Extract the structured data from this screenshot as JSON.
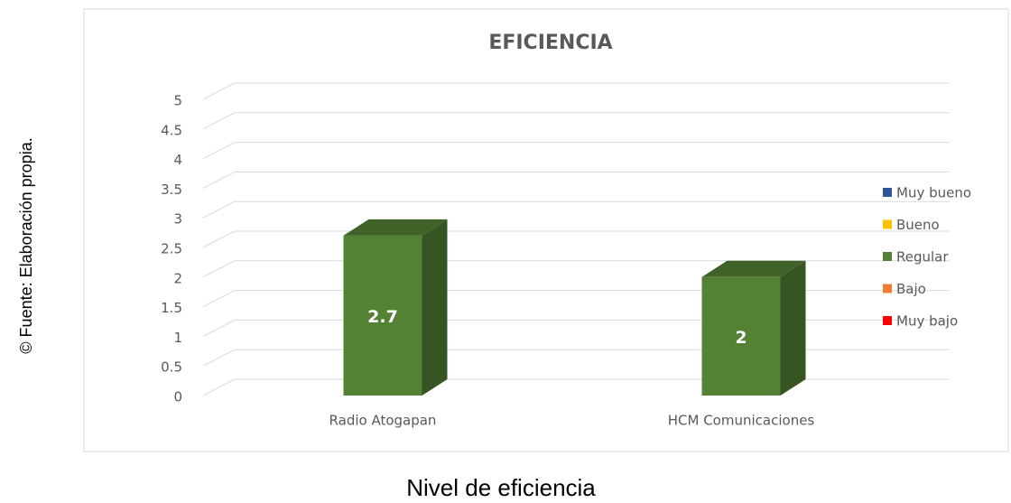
{
  "chart_data": {
    "type": "bar3d",
    "title": "EFICIENCIA",
    "categories": [
      "Radio Atogapan",
      "HCM Comunicaciones"
    ],
    "series": [
      {
        "name": "Muy bueno",
        "color": "#2f5597",
        "values": [
          null,
          null
        ]
      },
      {
        "name": "Bueno",
        "color": "#ffc000",
        "values": [
          null,
          null
        ]
      },
      {
        "name": "Regular",
        "color": "#548235",
        "values": [
          2.7,
          2
        ]
      },
      {
        "name": "Bajo",
        "color": "#ed7d31",
        "values": [
          null,
          null
        ]
      },
      {
        "name": "Muy bajo",
        "color": "#ff0000",
        "values": [
          null,
          null
        ]
      }
    ],
    "ylim": [
      0,
      5
    ],
    "yticks": [
      0,
      0.5,
      1,
      1.5,
      2,
      2.5,
      3,
      3.5,
      4,
      4.5,
      5
    ],
    "grid": true,
    "legend": "right"
  },
  "caption": "Nivel de eficiencia",
  "source": "© Fuente: Elaboración propia."
}
